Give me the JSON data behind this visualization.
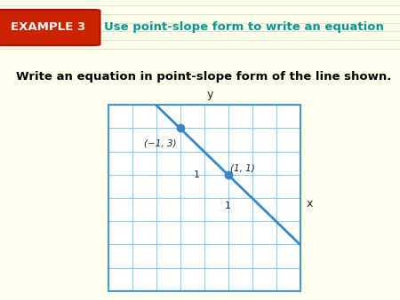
{
  "bg_color": "#ffffee",
  "header_bg": "#fffff0",
  "header_stripe_color": "#e8e8c8",
  "example_badge_bg": "#cc2200",
  "example_badge_text": "EXAMPLE 3",
  "example_badge_text_color": "#ffffff",
  "header_text": "Use point-slope form to write an equation",
  "header_text_color": "#009999",
  "main_text": "Write an equation in point-slope form of the line shown.",
  "main_text_color": "#000000",
  "grid_bg": "#ffffff",
  "grid_border_color": "#4499cc",
  "grid_line_color": "#88ccee",
  "axis_color": "#222222",
  "line_color": "#3388cc",
  "point_color": "#3388cc",
  "point1": [
    -1,
    3
  ],
  "point2": [
    1,
    1
  ],
  "label1": "(−1, 3)",
  "label2": "(1, 1)",
  "x_axis_label": "x",
  "y_axis_label": "y",
  "x_tick_label": "1",
  "y_tick_label": "1",
  "xlim": [
    -4,
    4
  ],
  "ylim": [
    -4,
    4
  ],
  "grid_steps": 1,
  "fig_width": 4.5,
  "fig_height": 3.38
}
